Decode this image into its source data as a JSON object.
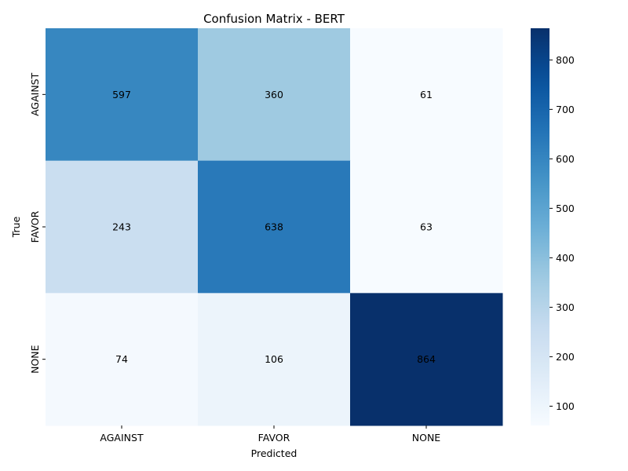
{
  "chart_data": {
    "type": "heatmap",
    "title": "Confusion Matrix - BERT",
    "xlabel": "Predicted",
    "ylabel": "True",
    "x_categories": [
      "AGAINST",
      "FAVOR",
      "NONE"
    ],
    "y_categories": [
      "AGAINST",
      "FAVOR",
      "NONE"
    ],
    "values": [
      [
        597,
        360,
        61
      ],
      [
        243,
        638,
        63
      ],
      [
        74,
        106,
        864
      ]
    ],
    "colormap": "Blues",
    "colorbar": {
      "range": [
        61,
        864
      ],
      "ticks": [
        100,
        200,
        300,
        400,
        500,
        600,
        700,
        800
      ],
      "tick_labels": [
        "100",
        "200",
        "300",
        "400",
        "500",
        "600",
        "700",
        "800"
      ]
    },
    "annotations": true,
    "grid": false
  }
}
